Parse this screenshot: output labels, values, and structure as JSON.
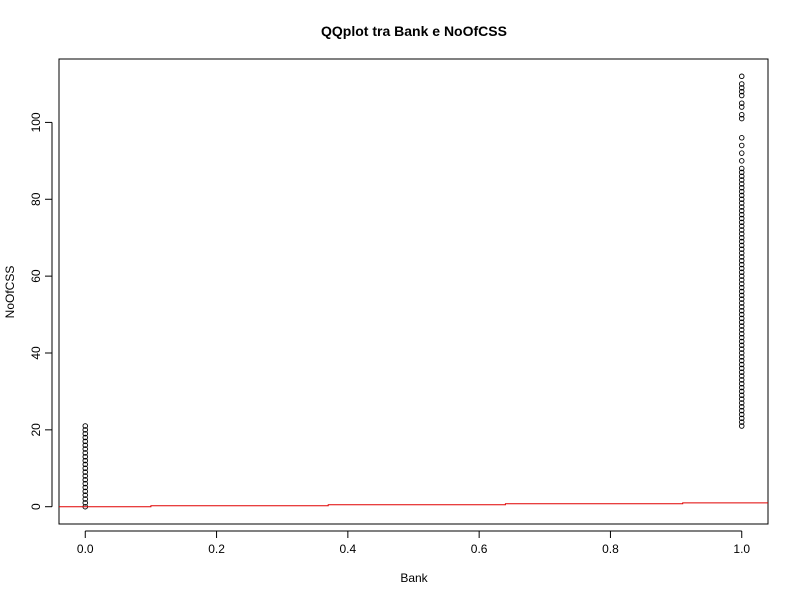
{
  "chart_data": {
    "type": "scatter",
    "title": "QQplot tra Bank e NoOfCSS",
    "xlabel": "Bank",
    "ylabel": "NoOfCSS",
    "xlim": [
      -0.04,
      1.04
    ],
    "ylim": [
      -4.5,
      116.5
    ],
    "x_ticks": [
      "0.0",
      "0.2",
      "0.4",
      "0.6",
      "0.8",
      "1.0"
    ],
    "x_tick_values": [
      0,
      0.2,
      0.4,
      0.6,
      0.8,
      1.0
    ],
    "y_ticks": [
      "0",
      "20",
      "40",
      "60",
      "80",
      "100"
    ],
    "y_tick_values": [
      0,
      20,
      40,
      60,
      80,
      100
    ],
    "grid": false,
    "series": [
      {
        "marker": "open-circle",
        "color": "#000000",
        "points": [
          [
            0,
            0
          ],
          [
            0,
            1
          ],
          [
            0,
            2
          ],
          [
            0,
            3
          ],
          [
            0,
            4
          ],
          [
            0,
            5
          ],
          [
            0,
            6
          ],
          [
            0,
            7
          ],
          [
            0,
            8
          ],
          [
            0,
            9
          ],
          [
            0,
            10
          ],
          [
            0,
            11
          ],
          [
            0,
            12
          ],
          [
            0,
            13
          ],
          [
            0,
            14
          ],
          [
            0,
            15
          ],
          [
            0,
            16
          ],
          [
            0,
            17
          ],
          [
            0,
            18
          ],
          [
            0,
            19
          ],
          [
            0,
            20
          ],
          [
            0,
            21
          ],
          [
            1,
            21
          ],
          [
            1,
            22
          ],
          [
            1,
            23
          ],
          [
            1,
            24
          ],
          [
            1,
            25
          ],
          [
            1,
            26
          ],
          [
            1,
            27
          ],
          [
            1,
            28
          ],
          [
            1,
            29
          ],
          [
            1,
            30
          ],
          [
            1,
            31
          ],
          [
            1,
            32
          ],
          [
            1,
            33
          ],
          [
            1,
            34
          ],
          [
            1,
            35
          ],
          [
            1,
            36
          ],
          [
            1,
            37
          ],
          [
            1,
            38
          ],
          [
            1,
            39
          ],
          [
            1,
            40
          ],
          [
            1,
            41
          ],
          [
            1,
            42
          ],
          [
            1,
            43
          ],
          [
            1,
            44
          ],
          [
            1,
            45
          ],
          [
            1,
            46
          ],
          [
            1,
            47
          ],
          [
            1,
            48
          ],
          [
            1,
            49
          ],
          [
            1,
            50
          ],
          [
            1,
            51
          ],
          [
            1,
            52
          ],
          [
            1,
            53
          ],
          [
            1,
            54
          ],
          [
            1,
            55
          ],
          [
            1,
            56
          ],
          [
            1,
            57
          ],
          [
            1,
            58
          ],
          [
            1,
            59
          ],
          [
            1,
            60
          ],
          [
            1,
            61
          ],
          [
            1,
            62
          ],
          [
            1,
            63
          ],
          [
            1,
            64
          ],
          [
            1,
            65
          ],
          [
            1,
            66
          ],
          [
            1,
            67
          ],
          [
            1,
            68
          ],
          [
            1,
            69
          ],
          [
            1,
            70
          ],
          [
            1,
            71
          ],
          [
            1,
            72
          ],
          [
            1,
            73
          ],
          [
            1,
            74
          ],
          [
            1,
            75
          ],
          [
            1,
            76
          ],
          [
            1,
            77
          ],
          [
            1,
            78
          ],
          [
            1,
            79
          ],
          [
            1,
            80
          ],
          [
            1,
            81
          ],
          [
            1,
            82
          ],
          [
            1,
            83
          ],
          [
            1,
            84
          ],
          [
            1,
            85
          ],
          [
            1,
            86
          ],
          [
            1,
            87
          ],
          [
            1,
            88
          ],
          [
            1,
            90
          ],
          [
            1,
            92
          ],
          [
            1,
            94
          ],
          [
            1,
            96
          ],
          [
            1,
            101
          ],
          [
            1,
            102
          ],
          [
            1,
            104
          ],
          [
            1,
            105
          ],
          [
            1,
            107
          ],
          [
            1,
            108
          ],
          [
            1,
            109
          ],
          [
            1,
            110
          ],
          [
            1,
            112
          ]
        ]
      },
      {
        "type": "line",
        "marker": "step-line",
        "color": "#e00000",
        "points": [
          [
            -0.04,
            0
          ],
          [
            0.1,
            0
          ],
          [
            0.1,
            0.25
          ],
          [
            0.37,
            0.25
          ],
          [
            0.37,
            0.5
          ],
          [
            0.64,
            0.5
          ],
          [
            0.64,
            0.75
          ],
          [
            0.91,
            0.75
          ],
          [
            0.91,
            1
          ],
          [
            1.04,
            1
          ]
        ]
      }
    ]
  }
}
